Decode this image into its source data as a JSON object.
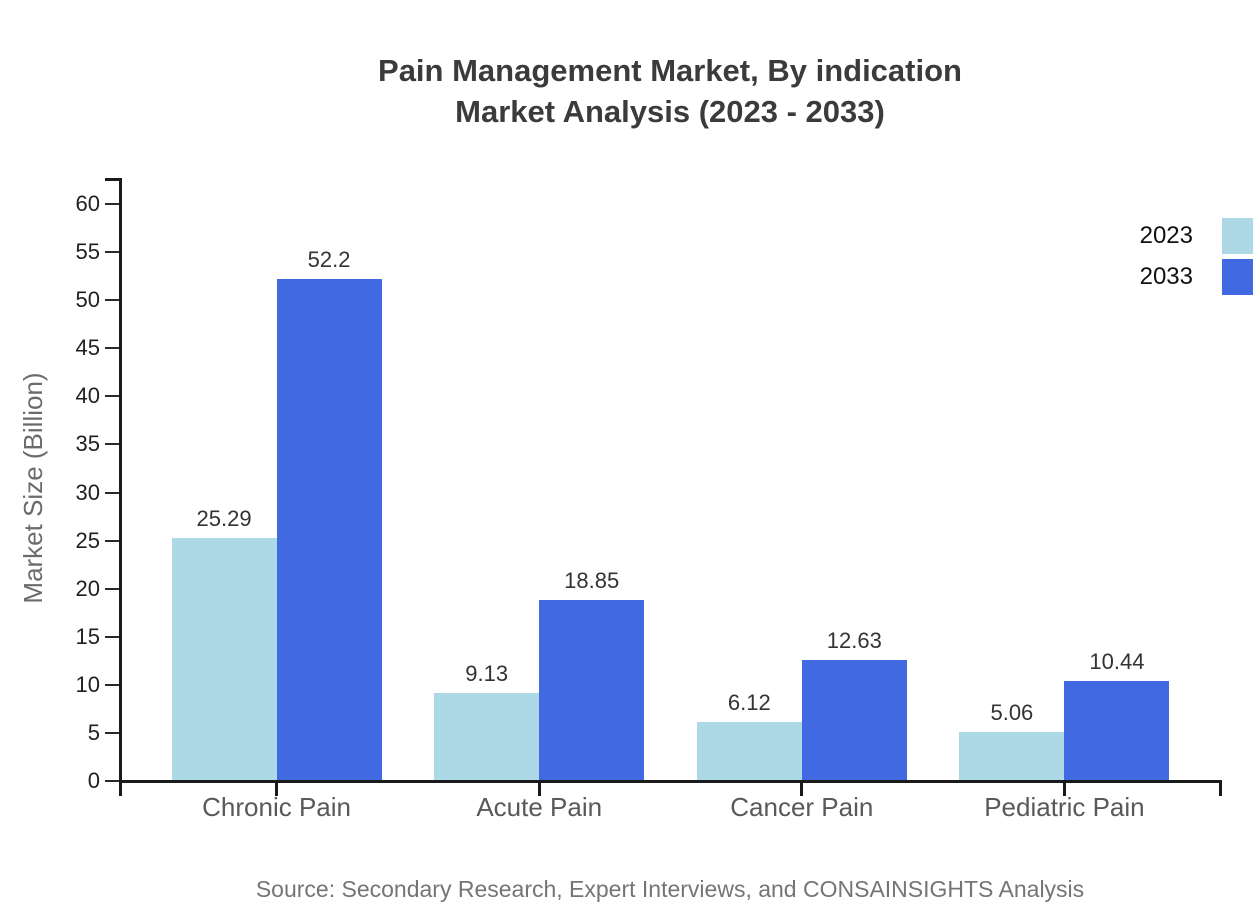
{
  "chart_data": {
    "type": "bar",
    "title": "Pain Management Market, By indication",
    "subtitle": "Market Analysis (2023 - 2033)",
    "categories": [
      "Chronic Pain",
      "Acute Pain",
      "Cancer Pain",
      "Pediatric Pain"
    ],
    "series": [
      {
        "name": "2023",
        "color": "#ADD8E6",
        "values": [
          25.29,
          9.13,
          6.12,
          5.06
        ]
      },
      {
        "name": "2033",
        "color": "#4169E1",
        "values": [
          52.2,
          18.85,
          12.63,
          10.44
        ]
      }
    ],
    "xlabel": "",
    "ylabel": "Market Size (Billion)",
    "ylim": [
      0,
      62.5
    ],
    "yticks": [
      0,
      5,
      10,
      15,
      20,
      25,
      30,
      35,
      40,
      45,
      50,
      55,
      60
    ],
    "grid": false,
    "value_labels": true,
    "legend_position": "top-right",
    "source": "Source: Secondary Research, Expert Interviews, and CONSAINSIGHTS Analysis"
  }
}
